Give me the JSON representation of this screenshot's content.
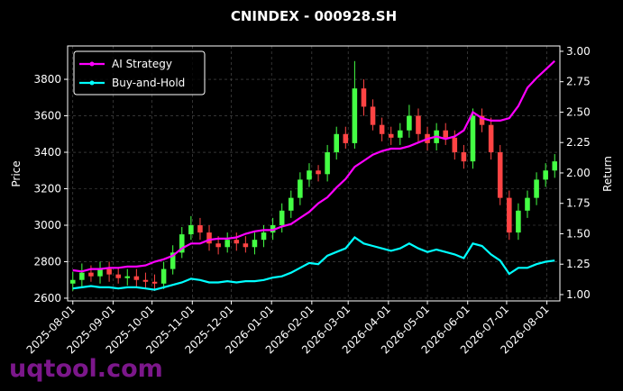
{
  "chart_data": {
    "type": "candlestick",
    "title": "CNINDEX - 000928.SH",
    "ylabel": "Price",
    "y2label": "Return",
    "watermark": "uqtool.com",
    "x": [
      "2025-08-01",
      "2025-08-08",
      "2025-08-15",
      "2025-08-22",
      "2025-08-29",
      "2025-09-05",
      "2025-09-12",
      "2025-09-19",
      "2025-09-26",
      "2025-10-03",
      "2025-10-10",
      "2025-10-17",
      "2025-10-24",
      "2025-10-31",
      "2025-11-07",
      "2025-11-14",
      "2025-11-21",
      "2025-11-28",
      "2025-12-05",
      "2025-12-12",
      "2025-12-19",
      "2025-12-26",
      "2026-01-02",
      "2026-01-09",
      "2026-01-16",
      "2026-01-23",
      "2026-01-30",
      "2026-02-06",
      "2026-02-13",
      "2026-02-20",
      "2026-02-27",
      "2026-03-06",
      "2026-03-13",
      "2026-03-20",
      "2026-03-27",
      "2026-04-03",
      "2026-04-10",
      "2026-04-17",
      "2026-04-24",
      "2026-05-01",
      "2026-05-08",
      "2026-05-15",
      "2026-05-22",
      "2026-05-29",
      "2026-06-05",
      "2026-06-12",
      "2026-06-19",
      "2026-06-26",
      "2026-07-03",
      "2026-07-10",
      "2026-07-17",
      "2026-07-24",
      "2026-07-31",
      "2026-08-07"
    ],
    "open": [
      2680,
      2700,
      2740,
      2720,
      2760,
      2730,
      2710,
      2720,
      2700,
      2690,
      2680,
      2760,
      2850,
      2950,
      3000,
      2960,
      2900,
      2880,
      2920,
      2900,
      2880,
      2920,
      2960,
      3000,
      3080,
      3150,
      3250,
      3300,
      3280,
      3400,
      3500,
      3450,
      3750,
      3650,
      3550,
      3500,
      3480,
      3520,
      3600,
      3500,
      3450,
      3520,
      3480,
      3400,
      3350,
      3600,
      3550,
      3400,
      3150,
      2960,
      3080,
      3150,
      3250,
      3300
    ],
    "high": [
      2745,
      2790,
      2780,
      2800,
      2800,
      2770,
      2760,
      2760,
      2740,
      2730,
      2800,
      2890,
      2990,
      3050,
      3040,
      3000,
      2940,
      2960,
      2960,
      2940,
      2960,
      3000,
      3040,
      3120,
      3190,
      3290,
      3340,
      3330,
      3440,
      3540,
      3540,
      3900,
      3800,
      3690,
      3590,
      3540,
      3560,
      3660,
      3640,
      3540,
      3560,
      3560,
      3520,
      3440,
      3640,
      3640,
      3590,
      3440,
      3190,
      3120,
      3190,
      3290,
      3340,
      3390
    ],
    "low": [
      2640,
      2660,
      2690,
      2680,
      2690,
      2680,
      2670,
      2660,
      2650,
      2640,
      2650,
      2730,
      2820,
      2920,
      2920,
      2860,
      2840,
      2850,
      2860,
      2850,
      2840,
      2880,
      2920,
      2960,
      3040,
      3110,
      3210,
      3240,
      3240,
      3360,
      3420,
      3420,
      3600,
      3520,
      3460,
      3440,
      3440,
      3480,
      3460,
      3410,
      3410,
      3440,
      3360,
      3310,
      3310,
      3510,
      3360,
      3110,
      2920,
      2920,
      3040,
      3110,
      3210,
      3260
    ],
    "close": [
      2700,
      2740,
      2720,
      2760,
      2730,
      2710,
      2720,
      2700,
      2690,
      2680,
      2760,
      2850,
      2950,
      3000,
      2960,
      2900,
      2880,
      2920,
      2900,
      2880,
      2920,
      2960,
      3000,
      3080,
      3150,
      3250,
      3300,
      3280,
      3400,
      3500,
      3450,
      3750,
      3650,
      3550,
      3500,
      3480,
      3520,
      3600,
      3500,
      3450,
      3520,
      3480,
      3400,
      3350,
      3600,
      3550,
      3400,
      3150,
      2960,
      3080,
      3150,
      3250,
      3300,
      3350
    ],
    "up_color": "#44ff44",
    "down_color": "#ff4444",
    "series": [
      {
        "name": "AI Strategy",
        "color": "#ff00ff",
        "axis": "y2",
        "values": [
          1.2,
          1.19,
          1.21,
          1.21,
          1.22,
          1.22,
          1.23,
          1.23,
          1.24,
          1.27,
          1.29,
          1.32,
          1.38,
          1.42,
          1.42,
          1.45,
          1.46,
          1.46,
          1.47,
          1.5,
          1.52,
          1.53,
          1.53,
          1.56,
          1.58,
          1.63,
          1.68,
          1.75,
          1.8,
          1.88,
          1.95,
          2.05,
          2.1,
          2.15,
          2.18,
          2.2,
          2.2,
          2.22,
          2.25,
          2.28,
          2.3,
          2.28,
          2.3,
          2.35,
          2.5,
          2.45,
          2.43,
          2.43,
          2.45,
          2.55,
          2.7,
          2.78,
          2.85,
          2.92
        ]
      },
      {
        "name": "Buy-and-Hold",
        "color": "#00ffff",
        "axis": "y2",
        "values": [
          1.05,
          1.06,
          1.07,
          1.06,
          1.06,
          1.05,
          1.06,
          1.06,
          1.05,
          1.04,
          1.06,
          1.08,
          1.1,
          1.13,
          1.12,
          1.1,
          1.1,
          1.11,
          1.1,
          1.11,
          1.11,
          1.12,
          1.14,
          1.15,
          1.18,
          1.22,
          1.26,
          1.25,
          1.32,
          1.35,
          1.38,
          1.47,
          1.42,
          1.4,
          1.38,
          1.36,
          1.38,
          1.42,
          1.38,
          1.35,
          1.37,
          1.35,
          1.33,
          1.3,
          1.42,
          1.4,
          1.33,
          1.28,
          1.17,
          1.22,
          1.22,
          1.25,
          1.27,
          1.28
        ]
      }
    ],
    "xlim": [
      "2025-07-28",
      "2026-08-11"
    ],
    "xticks": [
      "2025-08-01",
      "2025-09-01",
      "2025-10-01",
      "2025-11-01",
      "2025-12-01",
      "2026-01-01",
      "2026-02-01",
      "2026-03-01",
      "2026-04-01",
      "2026-05-01",
      "2026-06-01",
      "2026-07-01",
      "2026-08-01"
    ],
    "ylim": [
      2585,
      3983
    ],
    "yticks": [
      2600,
      2800,
      3000,
      3200,
      3400,
      3600,
      3800
    ],
    "y2lim": [
      0.948,
      3.044
    ],
    "y2ticks": [
      {
        "value": 1,
        "label": "1.00"
      },
      {
        "value": 1.25,
        "label": "1.25"
      },
      {
        "value": 1.5,
        "label": "1.50"
      },
      {
        "value": 1.75,
        "label": "1.75"
      },
      {
        "value": 2,
        "label": "2.00"
      },
      {
        "value": 2.25,
        "label": "2.25"
      },
      {
        "value": 2.5,
        "label": "2.50"
      },
      {
        "value": 2.75,
        "label": "2.75"
      },
      {
        "value": 3,
        "label": "3.00"
      }
    ],
    "grid": true,
    "legend": "upper left"
  }
}
